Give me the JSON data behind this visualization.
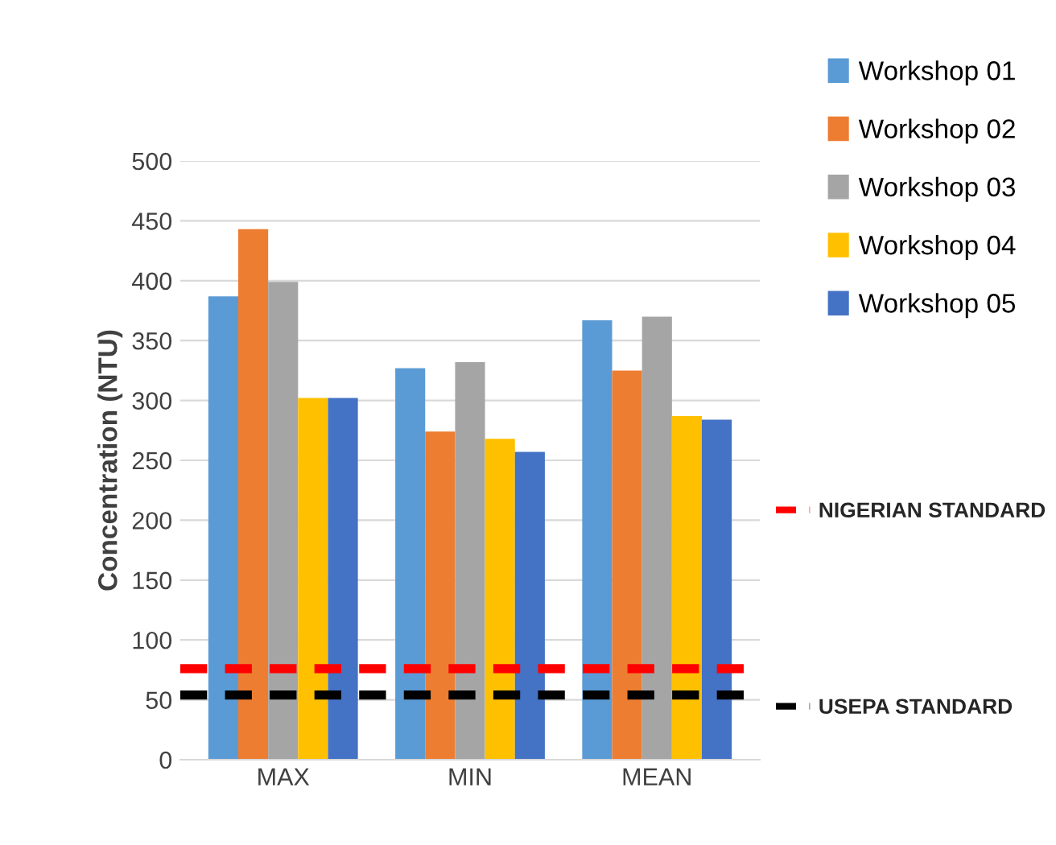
{
  "chart_data": {
    "type": "bar",
    "ylabel": "Concentration (NTU)",
    "categories": [
      "MAX",
      "MIN",
      "MEAN"
    ],
    "series": [
      {
        "name": "Workshop 01",
        "color": "#5b9bd5",
        "values": [
          387,
          327,
          367
        ]
      },
      {
        "name": "Workshop 02",
        "color": "#ed7d31",
        "values": [
          443,
          274,
          325
        ]
      },
      {
        "name": "Workshop 03",
        "color": "#a5a5a5",
        "values": [
          399,
          332,
          370
        ]
      },
      {
        "name": "Workshop 04",
        "color": "#ffc000",
        "values": [
          302,
          268,
          287
        ]
      },
      {
        "name": "Workshop 05",
        "color": "#4472c4",
        "values": [
          302,
          257,
          284
        ]
      }
    ],
    "ylim": [
      0,
      500
    ],
    "yticks": [
      0,
      50,
      100,
      150,
      200,
      250,
      300,
      350,
      400,
      450,
      500
    ],
    "grid": "y",
    "legend": "right",
    "ref_lines": [
      {
        "axis": "y",
        "value": 76,
        "label": "NIGERIAN STANDARD",
        "color": "#ff0000",
        "line_style": "dashed"
      },
      {
        "axis": "y",
        "value": 54,
        "label": "USEPA STANDARD",
        "color": "#000000",
        "line_style": "dashed"
      }
    ]
  }
}
